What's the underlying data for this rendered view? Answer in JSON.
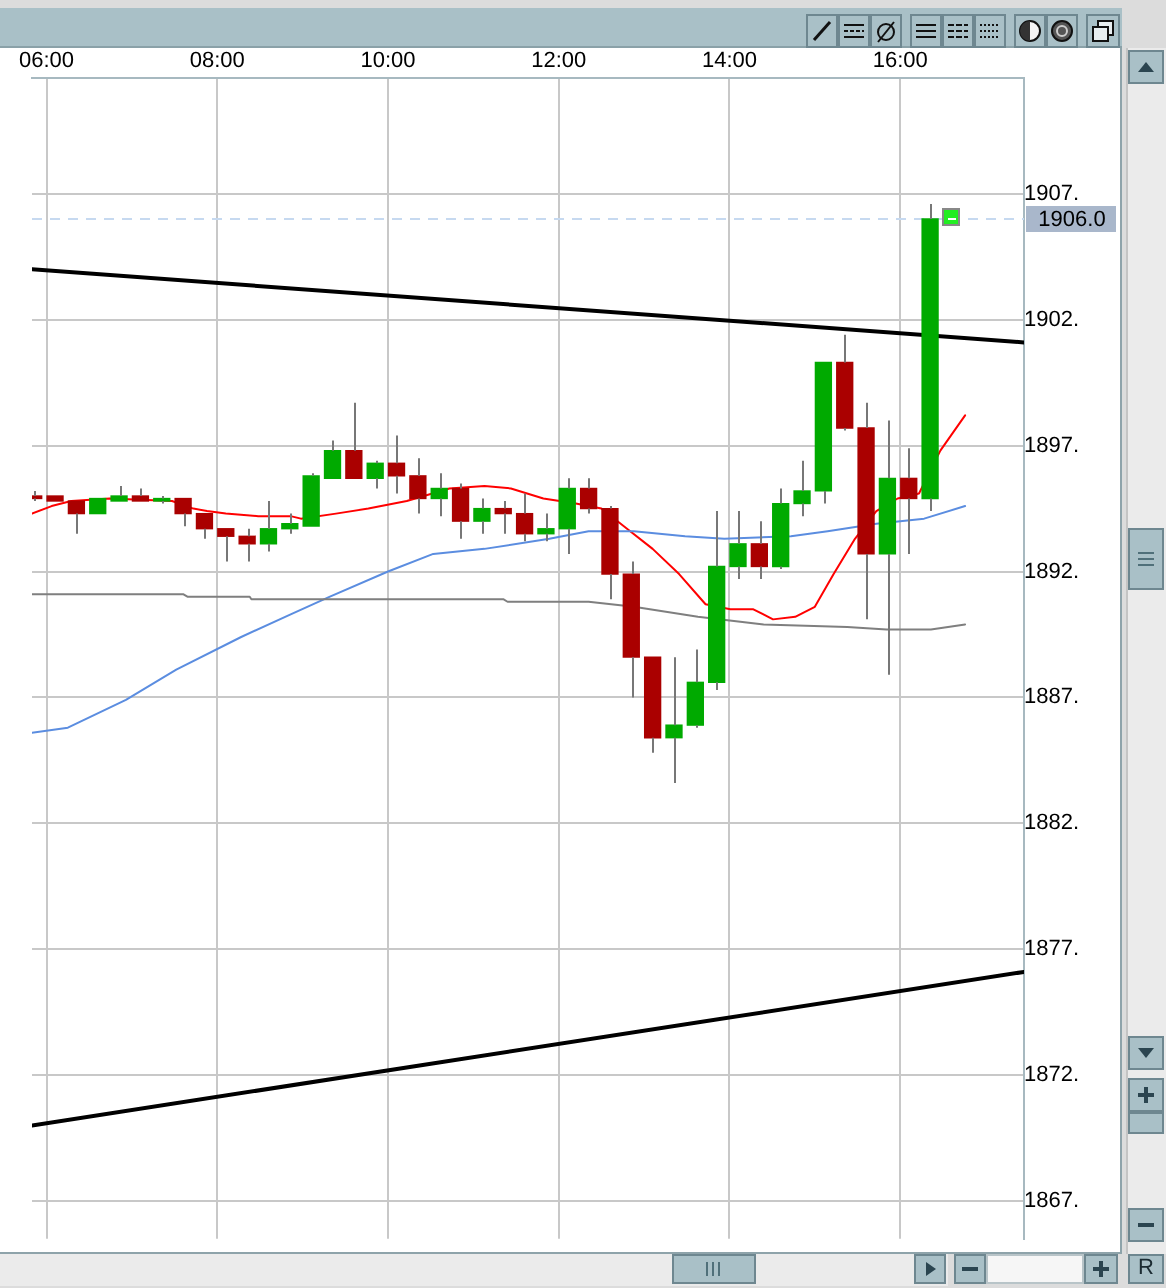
{
  "chart_data": {
    "type": "candlestick",
    "x": [
      5.85,
      6.1,
      6.35,
      6.6,
      6.85,
      7.1,
      7.35,
      7.6,
      7.85,
      8.1,
      8.35,
      8.6,
      8.85,
      9.1,
      9.35,
      9.6,
      9.85,
      10.1,
      10.35,
      10.6,
      10.85,
      11.1,
      11.35,
      11.6,
      11.85,
      12.1,
      12.35,
      12.6,
      12.85,
      13.1,
      13.35,
      13.6,
      13.85,
      14.1,
      14.35,
      14.6,
      14.85,
      15.1,
      15.35,
      15.6,
      15.85,
      16.1,
      16.35
    ],
    "ohlc": [
      [
        1895.0,
        1895.2,
        1894.8,
        1894.9
      ],
      [
        1895.0,
        1895.0,
        1894.8,
        1894.8
      ],
      [
        1894.8,
        1894.8,
        1893.5,
        1894.3
      ],
      [
        1894.3,
        1894.9,
        1894.3,
        1894.9
      ],
      [
        1894.8,
        1895.4,
        1894.8,
        1895.0
      ],
      [
        1895.0,
        1895.3,
        1894.8,
        1894.8
      ],
      [
        1894.8,
        1895.0,
        1894.7,
        1894.9
      ],
      [
        1894.9,
        1894.9,
        1893.8,
        1894.3
      ],
      [
        1894.3,
        1894.3,
        1893.3,
        1893.7
      ],
      [
        1893.7,
        1893.7,
        1892.4,
        1893.4
      ],
      [
        1893.4,
        1893.7,
        1892.4,
        1893.1
      ],
      [
        1893.1,
        1894.8,
        1892.8,
        1893.7
      ],
      [
        1893.7,
        1894.3,
        1893.5,
        1893.9
      ],
      [
        1893.8,
        1895.9,
        1893.8,
        1895.8
      ],
      [
        1895.7,
        1897.2,
        1895.7,
        1896.8
      ],
      [
        1896.8,
        1898.7,
        1895.7,
        1895.7
      ],
      [
        1895.7,
        1896.4,
        1895.3,
        1896.3
      ],
      [
        1896.3,
        1897.4,
        1895.1,
        1895.8
      ],
      [
        1895.8,
        1896.5,
        1894.3,
        1894.9
      ],
      [
        1894.9,
        1895.9,
        1894.2,
        1895.3
      ],
      [
        1895.3,
        1895.5,
        1893.3,
        1894.0
      ],
      [
        1894.0,
        1894.9,
        1893.5,
        1894.5
      ],
      [
        1894.5,
        1894.8,
        1893.5,
        1894.3
      ],
      [
        1894.3,
        1895.1,
        1893.2,
        1893.5
      ],
      [
        1893.5,
        1894.3,
        1893.2,
        1893.7
      ],
      [
        1893.7,
        1895.7,
        1892.7,
        1895.3
      ],
      [
        1895.3,
        1895.7,
        1894.3,
        1894.5
      ],
      [
        1894.5,
        1894.6,
        1890.9,
        1891.9
      ],
      [
        1891.9,
        1892.4,
        1887.0,
        1888.6
      ],
      [
        1888.6,
        1888.6,
        1884.8,
        1885.4
      ],
      [
        1885.4,
        1888.6,
        1883.6,
        1885.9
      ],
      [
        1885.9,
        1888.9,
        1885.8,
        1887.6
      ],
      [
        1887.6,
        1894.4,
        1887.3,
        1892.2
      ],
      [
        1892.2,
        1894.4,
        1891.7,
        1893.1
      ],
      [
        1893.1,
        1894.0,
        1891.7,
        1892.2
      ],
      [
        1892.2,
        1895.3,
        1892.1,
        1894.7
      ],
      [
        1894.7,
        1896.4,
        1894.2,
        1895.2
      ],
      [
        1895.2,
        1900.3,
        1894.7,
        1900.3
      ],
      [
        1900.3,
        1901.4,
        1897.6,
        1897.7
      ],
      [
        1897.7,
        1898.7,
        1890.1,
        1892.7
      ],
      [
        1892.7,
        1898.0,
        1887.9,
        1895.7
      ],
      [
        1895.7,
        1896.9,
        1892.7,
        1894.9
      ],
      [
        1894.9,
        1906.6,
        1894.4,
        1906.0
      ]
    ],
    "colors": [
      "#aa0000",
      "#aa0000",
      "#aa0000",
      "#00aa00",
      "#00aa00",
      "#aa0000",
      "#00aa00",
      "#aa0000",
      "#aa0000",
      "#aa0000",
      "#aa0000",
      "#00aa00",
      "#00aa00",
      "#00aa00",
      "#00aa00",
      "#aa0000",
      "#00aa00",
      "#aa0000",
      "#aa0000",
      "#00aa00",
      "#aa0000",
      "#00aa00",
      "#aa0000",
      "#aa0000",
      "#00aa00",
      "#00aa00",
      "#aa0000",
      "#aa0000",
      "#aa0000",
      "#aa0000",
      "#00aa00",
      "#00aa00",
      "#00aa00",
      "#00aa00",
      "#aa0000",
      "#00aa00",
      "#00aa00",
      "#00aa00",
      "#aa0000",
      "#aa0000",
      "#00aa00",
      "#aa0000",
      "#00aa00"
    ],
    "series": [
      {
        "type": "line",
        "color": "#000000",
        "x": [
          5.83,
          17.45
        ],
        "values": [
          1904.0,
          1901.1
        ]
      },
      {
        "type": "line",
        "color": "#000000",
        "x": [
          5.83,
          17.45
        ],
        "values": [
          1870.0,
          1876.1
        ]
      },
      {
        "type": "line",
        "color": "#7f7f7f",
        "x": [
          5.83,
          7.6,
          7.65,
          8.38,
          8.4,
          11.35,
          11.4,
          12.35,
          12.88,
          13.63,
          14.4,
          15.38,
          15.84,
          16.36,
          16.76
        ],
        "values": [
          1891.1,
          1891.1,
          1891.0,
          1891.0,
          1890.9,
          1890.9,
          1890.8,
          1890.8,
          1890.6,
          1890.2,
          1889.9,
          1889.8,
          1889.7,
          1889.7,
          1889.9
        ]
      },
      {
        "type": "line",
        "color": "#5b8de0",
        "x": [
          5.83,
          6.25,
          6.93,
          7.52,
          8.28,
          8.86,
          9.32,
          10.0,
          10.53,
          11.13,
          11.89,
          12.35,
          12.88,
          13.48,
          13.94,
          14.72,
          15.15,
          15.72,
          16.28,
          16.76
        ],
        "values": [
          1885.6,
          1885.8,
          1886.9,
          1888.1,
          1889.4,
          1890.3,
          1891.0,
          1892.0,
          1892.7,
          1892.9,
          1893.3,
          1893.6,
          1893.6,
          1893.4,
          1893.3,
          1893.4,
          1893.6,
          1893.9,
          1894.1,
          1894.6
        ]
      },
      {
        "type": "line",
        "color": "#ff0000",
        "x": [
          5.83,
          6.06,
          6.29,
          6.74,
          7.47,
          7.72,
          7.88,
          8.1,
          8.48,
          8.86,
          8.98,
          9.39,
          9.77,
          10.22,
          10.72,
          11.13,
          11.44,
          11.82,
          12.2,
          12.5,
          12.8,
          13.1,
          13.41,
          13.72,
          14.01,
          14.28,
          14.51,
          14.77,
          15.0,
          15.22,
          15.47,
          15.72,
          15.97,
          16.22,
          16.47,
          16.76
        ],
        "values": [
          1894.3,
          1894.6,
          1894.8,
          1894.9,
          1894.8,
          1894.5,
          1894.4,
          1894.3,
          1894.2,
          1894.2,
          1894.1,
          1894.3,
          1894.5,
          1894.8,
          1895.3,
          1895.4,
          1895.3,
          1894.9,
          1894.7,
          1894.5,
          1893.7,
          1892.9,
          1891.9,
          1890.7,
          1890.5,
          1890.5,
          1890.1,
          1890.2,
          1890.6,
          1891.9,
          1893.3,
          1894.4,
          1894.9,
          1895.1,
          1896.8,
          1898.2
        ]
      }
    ],
    "xlim": [
      5.83,
      17.45
    ],
    "xticks": [
      {
        "value": 6,
        "label": "06:00"
      },
      {
        "value": 8,
        "label": "08:00"
      },
      {
        "value": 10,
        "label": "10:00"
      },
      {
        "value": 12,
        "label": "12:00"
      },
      {
        "value": 14,
        "label": "14:00"
      },
      {
        "value": 16,
        "label": "16:00"
      }
    ],
    "ylim": [
      1865.5,
      1911.6
    ],
    "yticks": [
      {
        "value": 1867,
        "label": "1867."
      },
      {
        "value": 1872,
        "label": "1872."
      },
      {
        "value": 1877,
        "label": "1877."
      },
      {
        "value": 1882,
        "label": "1882."
      },
      {
        "value": 1887,
        "label": "1887."
      },
      {
        "value": 1892,
        "label": "1892."
      },
      {
        "value": 1897,
        "label": "1897."
      },
      {
        "value": 1902,
        "label": "1902."
      },
      {
        "value": 1907,
        "label": "1907."
      }
    ],
    "grid": true,
    "ref_lines": [
      {
        "axis": "y",
        "value": 1906.0,
        "label": "1906.0",
        "color": "#c6d9f0",
        "line_style": "dashed"
      }
    ],
    "annotations": [
      "R"
    ]
  }
}
